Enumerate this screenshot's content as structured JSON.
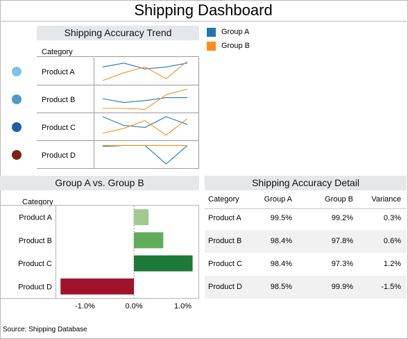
{
  "dashboard": {
    "title": "Shipping Dashboard",
    "source": "Source: Shipping Database"
  },
  "trend_panel": {
    "title": "Shipping Accuracy Trend",
    "category_header": "Category",
    "rows": [
      {
        "label": "Product A",
        "dot_color": "#7ec3e6"
      },
      {
        "label": "Product B",
        "dot_color": "#4d9bcb"
      },
      {
        "label": "Product C",
        "dot_color": "#1f5fa0"
      },
      {
        "label": "Product D",
        "dot_color": "#7b2411"
      }
    ]
  },
  "legend": {
    "items": [
      {
        "label": "Group A",
        "color": "#1f77b4"
      },
      {
        "label": "Group B",
        "color": "#ff8c1a"
      }
    ]
  },
  "gap_panel": {
    "title": "Group A vs. Group B",
    "category_header": "Category"
  },
  "detail_panel": {
    "title": "Shipping Accuracy Detail",
    "columns": [
      "Category",
      "Group A",
      "Group B",
      "Variance"
    ],
    "rows": [
      [
        "Product A",
        "99.5%",
        "99.2%",
        "0.3%"
      ],
      [
        "Product B",
        "98.4%",
        "97.8%",
        "0.6%"
      ],
      [
        "Product C",
        "98.4%",
        "97.3%",
        "1.2%"
      ],
      [
        "Product D",
        "98.5%",
        "99.9%",
        "-1.5%"
      ]
    ]
  },
  "chart_data": [
    {
      "type": "line",
      "title": "Shipping Accuracy Trend",
      "categories": [
        "Product A",
        "Product B",
        "Product C",
        "Product D"
      ],
      "sparklines": [
        {
          "category": "Product A",
          "series": [
            {
              "name": "Group A",
              "values": [
                0.3,
                0.1,
                0.4,
                0.3,
                0.1
              ]
            },
            {
              "name": "Group B",
              "values": [
                1.0,
                0.6,
                0.3,
                0.9,
                0.0
              ]
            }
          ]
        },
        {
          "category": "Product B",
          "series": [
            {
              "name": "Group A",
              "values": [
                0.5,
                0.7,
                0.6,
                0.45,
                0.45
              ]
            },
            {
              "name": "Group B",
              "values": [
                1.0,
                1.0,
                1.05,
                0.3,
                0.0
              ]
            }
          ]
        },
        {
          "category": "Product C",
          "series": [
            {
              "name": "Group A",
              "values": [
                0.0,
                0.45,
                0.55,
                0.0,
                0.4
              ]
            },
            {
              "name": "Group B",
              "values": [
                0.85,
                0.6,
                0.2,
                0.95,
                0.1
              ]
            }
          ]
        },
        {
          "category": "Product D",
          "series": [
            {
              "name": "Group A",
              "values": [
                0.1,
                0.05,
                0.05,
                1.0,
                0.05
              ]
            },
            {
              "name": "Group B",
              "values": [
                0.05,
                0.05,
                0.05,
                0.05,
                0.05
              ]
            }
          ]
        }
      ]
    },
    {
      "type": "bar",
      "orientation": "horizontal",
      "title": "Group A vs. Group B",
      "categories": [
        "Product A",
        "Product B",
        "Product C",
        "Product D"
      ],
      "values": [
        0.3,
        0.6,
        1.2,
        -1.5
      ],
      "colors": [
        "#a3c98f",
        "#5fad5a",
        "#1e7a3b",
        "#a1122b"
      ],
      "xticks": [
        "-1.0%",
        "0.0%",
        "1.0%"
      ],
      "xlim": [
        -1.5,
        1.2
      ]
    }
  ]
}
